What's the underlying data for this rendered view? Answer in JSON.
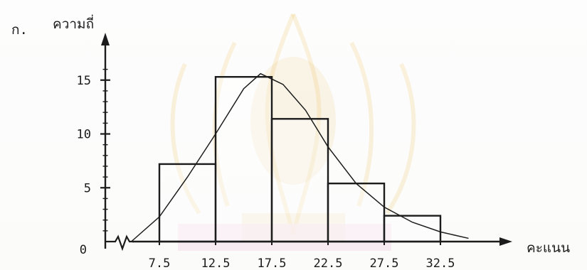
{
  "chart_data": {
    "type": "bar",
    "subtype": "histogram-with-frequency-curve",
    "panel_label": "ก.",
    "ylabel": "ความถี่",
    "xlabel": "คะแนน",
    "y_ticks": [
      "0",
      "5",
      "10",
      "15"
    ],
    "y_tick_values": [
      0,
      5,
      10,
      15
    ],
    "x_ticks": [
      "7.5",
      "12.5",
      "17.5",
      "22.5",
      "27.5",
      "32.5"
    ],
    "x_tick_values": [
      7.5,
      12.5,
      17.5,
      22.5,
      27.5,
      32.5
    ],
    "bins": [
      {
        "from": 7.5,
        "to": 12.5,
        "value": 7.2
      },
      {
        "from": 12.5,
        "to": 17.5,
        "value": 15.3
      },
      {
        "from": 17.5,
        "to": 22.5,
        "value": 11.4
      },
      {
        "from": 22.5,
        "to": 27.5,
        "value": 5.4
      },
      {
        "from": 27.5,
        "to": 32.5,
        "value": 2.4
      }
    ],
    "curve": {
      "x": [
        5.0,
        7.5,
        10.0,
        12.5,
        15.0,
        16.5,
        18.5,
        20.5,
        22.5,
        25.0,
        27.5,
        30.0,
        32.5,
        35.0
      ],
      "y": [
        0.0,
        2.3,
        6.0,
        10.0,
        14.2,
        15.6,
        14.6,
        12.2,
        8.8,
        5.4,
        3.2,
        1.8,
        0.9,
        0.3
      ]
    },
    "xlim": [
      0,
      38
    ],
    "ylim": [
      0,
      18
    ],
    "grid": false,
    "legend": "none",
    "colors": {
      "ink": "#1c1c1c",
      "bar_fill": "#ffffff",
      "pink_shade": "#f6e6ee",
      "watermark": "#e9b94a"
    }
  }
}
